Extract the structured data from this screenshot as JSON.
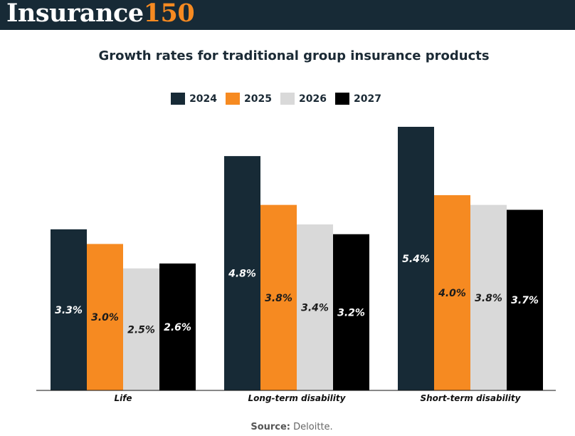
{
  "brand": {
    "logo_part1": "Insurance",
    "logo_part2": "150"
  },
  "colors": {
    "header_bg": "#172a36",
    "accent": "#f68a21"
  },
  "chart_data": {
    "type": "bar",
    "title": "Growth rates for traditional group insurance products",
    "categories": [
      "Life",
      "Long-term disability",
      "Short-term disability"
    ],
    "series": [
      {
        "name": "2024",
        "color": "#172a36",
        "label_color": "#ffffff",
        "values": [
          3.3,
          4.8,
          5.4
        ],
        "labels": [
          "3.3%",
          "4.8%",
          "5.4%"
        ]
      },
      {
        "name": "2025",
        "color": "#f68a21",
        "label_color": "#1b1b1b",
        "values": [
          3.0,
          3.8,
          4.0
        ],
        "labels": [
          "3.0%",
          "3.8%",
          "4.0%"
        ]
      },
      {
        "name": "2026",
        "color": "#d9d9d9",
        "label_color": "#1b1b1b",
        "values": [
          2.5,
          3.4,
          3.8
        ],
        "labels": [
          "2.5%",
          "3.4%",
          "3.8%"
        ]
      },
      {
        "name": "2027",
        "color": "#000000",
        "label_color": "#ffffff",
        "values": [
          2.6,
          3.2,
          3.7
        ],
        "labels": [
          "2.6%",
          "3.2%",
          "3.7%"
        ]
      }
    ],
    "ylim": [
      0,
      5.4
    ],
    "legend": "top-center",
    "grid": false
  },
  "source": {
    "label": "Source:",
    "text": "Deloitte."
  }
}
